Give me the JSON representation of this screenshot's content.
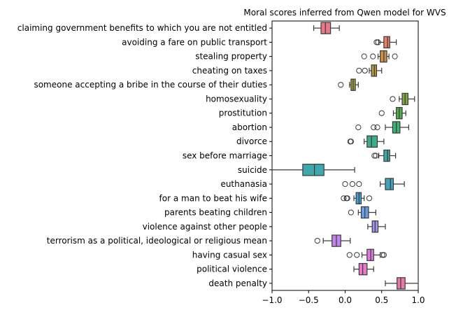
{
  "chart_data": {
    "type": "box",
    "title": "Moral scores inferred from Qwen model for WVS",
    "xlabel": "",
    "ylabel": "",
    "xlim": [
      -1.0,
      1.0
    ],
    "xticks": [
      -1.0,
      -0.5,
      0.0,
      0.5,
      1.0
    ],
    "xtick_labels": [
      "−1.0",
      "−0.5",
      "0.0",
      "0.5",
      "1.0"
    ],
    "grid": false,
    "categories": [
      "claiming government benefits to which you are not entitled",
      "avoiding a fare on public transport",
      "stealing property",
      "cheating on taxes",
      "someone accepting a bribe in the course of their duties",
      "homosexuality",
      "prostitution",
      "abortion",
      "divorce",
      "sex before marriage",
      "suicide",
      "euthanasia",
      "for a man to beat his wife",
      "parents beating children",
      "violence against other people",
      "terrorism as a political, ideological or religious mean",
      "having casual sex",
      "political violence",
      "death penalty"
    ],
    "colors": [
      "#e8788a",
      "#e98267",
      "#c99146",
      "#b29a3c",
      "#9da23a",
      "#7caa3b",
      "#4fb246",
      "#3ab274",
      "#3cad8f",
      "#3eaa9e",
      "#3ea8ac",
      "#40a4bc",
      "#43a1cf",
      "#6a9fe5",
      "#9d94ec",
      "#c284ea",
      "#e27ae0",
      "#e67ac8",
      "#e879a8"
    ],
    "boxes": [
      {
        "whislo": -0.43,
        "q1": -0.33,
        "med": -0.27,
        "q3": -0.2,
        "whishi": -0.08,
        "fliers": []
      },
      {
        "whislo": 0.46,
        "q1": 0.53,
        "med": 0.58,
        "q3": 0.61,
        "whishi": 0.7,
        "fliers": [
          0.43,
          0.45
        ]
      },
      {
        "whislo": 0.45,
        "q1": 0.48,
        "med": 0.53,
        "q3": 0.57,
        "whishi": 0.6,
        "fliers": [
          0.26,
          0.38,
          0.68
        ]
      },
      {
        "whislo": 0.33,
        "q1": 0.36,
        "med": 0.4,
        "q3": 0.43,
        "whishi": 0.5,
        "fliers": [
          0.19,
          0.27
        ]
      },
      {
        "whislo": 0.06,
        "q1": 0.08,
        "med": 0.11,
        "q3": 0.14,
        "whishi": 0.18,
        "fliers": [
          -0.06
        ]
      },
      {
        "whislo": 0.74,
        "q1": 0.78,
        "med": 0.82,
        "q3": 0.86,
        "whishi": 0.95,
        "fliers": [
          0.65
        ]
      },
      {
        "whislo": 0.66,
        "q1": 0.7,
        "med": 0.74,
        "q3": 0.78,
        "whishi": 0.83,
        "fliers": [
          0.5
        ]
      },
      {
        "whislo": 0.55,
        "q1": 0.65,
        "med": 0.7,
        "q3": 0.75,
        "whishi": 0.87,
        "fliers": [
          0.18,
          0.39,
          0.44
        ]
      },
      {
        "whislo": 0.26,
        "q1": 0.3,
        "med": 0.36,
        "q3": 0.44,
        "whishi": 0.53,
        "fliers": [
          0.07,
          0.08
        ]
      },
      {
        "whislo": 0.46,
        "q1": 0.53,
        "med": 0.58,
        "q3": 0.61,
        "whishi": 0.69,
        "fliers": [
          0.4,
          0.42
        ]
      },
      {
        "whislo": -1.0,
        "q1": -0.58,
        "med": -0.42,
        "q3": -0.29,
        "whishi": 0.13,
        "fliers": []
      },
      {
        "whislo": 0.48,
        "q1": 0.55,
        "med": 0.62,
        "q3": 0.66,
        "whishi": 0.81,
        "fliers": [
          0.0,
          0.1,
          0.19
        ]
      },
      {
        "whislo": 0.12,
        "q1": 0.15,
        "med": 0.19,
        "q3": 0.22,
        "whishi": 0.26,
        "fliers": [
          -0.02,
          0.02,
          0.03,
          0.33
        ]
      },
      {
        "whislo": 0.18,
        "q1": 0.22,
        "med": 0.27,
        "q3": 0.32,
        "whishi": 0.42,
        "fliers": [
          0.08
        ]
      },
      {
        "whislo": 0.31,
        "q1": 0.37,
        "med": 0.41,
        "q3": 0.45,
        "whishi": 0.55,
        "fliers": []
      },
      {
        "whislo": -0.3,
        "q1": -0.18,
        "med": -0.12,
        "q3": -0.06,
        "whishi": 0.07,
        "fliers": [
          -0.38
        ]
      },
      {
        "whislo": 0.23,
        "q1": 0.3,
        "med": 0.35,
        "q3": 0.39,
        "whishi": 0.48,
        "fliers": [
          0.06,
          0.16,
          0.51,
          0.53
        ]
      },
      {
        "whislo": 0.12,
        "q1": 0.19,
        "med": 0.24,
        "q3": 0.3,
        "whishi": 0.39,
        "fliers": []
      },
      {
        "whislo": 0.55,
        "q1": 0.71,
        "med": 0.76,
        "q3": 0.82,
        "whishi": 1.0,
        "fliers": []
      }
    ]
  }
}
